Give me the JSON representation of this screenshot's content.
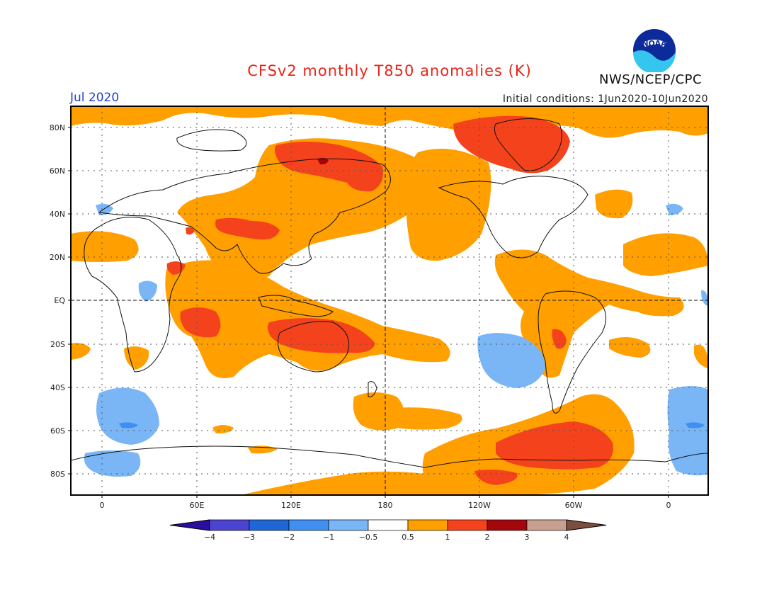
{
  "header": {
    "title": "CFSv2 monthly T850 anomalies (K)",
    "month": "Jul 2020",
    "initial_conditions": "Initial conditions: 1Jun2020-10Jun2020",
    "agency": "NWS/NCEP/CPC",
    "logo_text": "NOAA"
  },
  "axes": {
    "y_ticks": [
      "80N",
      "60N",
      "40N",
      "20N",
      "EQ",
      "20S",
      "40S",
      "60S",
      "80S"
    ],
    "x_ticks": [
      "0",
      "60E",
      "120E",
      "180",
      "120W",
      "60W",
      "0"
    ]
  },
  "colorbar": {
    "labels": [
      "−4",
      "−3",
      "−2",
      "−1",
      "−0.5",
      "0.5",
      "1",
      "2",
      "3",
      "4"
    ],
    "colors": [
      "#2b0e9e",
      "#4a44d0",
      "#1f66d6",
      "#3f8ff0",
      "#7ab6f5",
      "#ffffff",
      "#ff9f00",
      "#f4431c",
      "#a4070b",
      "#c9a090",
      "#7b4e3f"
    ]
  },
  "colors": {
    "warm1": "#ff9f00",
    "warm2": "#f4431c",
    "warm3": "#a4070b",
    "cool1": "#7ab6f5",
    "cool2": "#3f8ff0"
  }
}
